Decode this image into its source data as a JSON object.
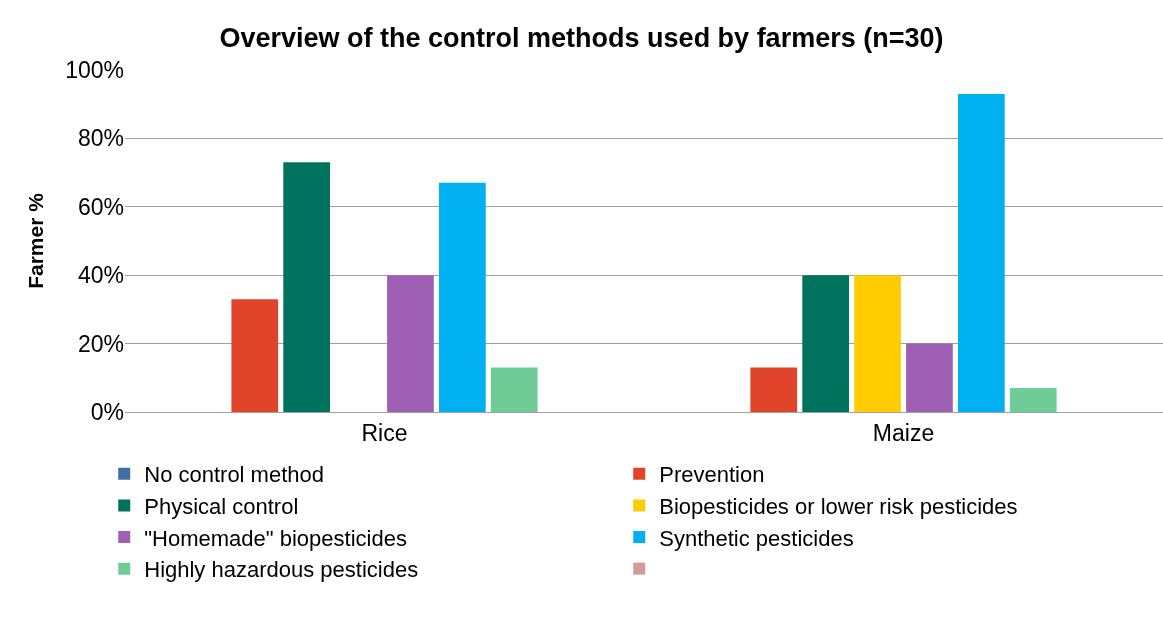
{
  "chart_data": {
    "type": "bar",
    "title": "Overview of the control methods used by farmers (n=30)",
    "ylabel": "Farmer %",
    "categories": [
      "Rice",
      "Maize"
    ],
    "series": [
      {
        "name": "No control method",
        "color": "#3f6fa6",
        "values": [
          0,
          0
        ]
      },
      {
        "name": "Prevention",
        "color": "#e0452b",
        "values": [
          33,
          13
        ]
      },
      {
        "name": "Physical control",
        "color": "#00735f",
        "values": [
          73,
          40
        ]
      },
      {
        "name": "Biopesticides or lower risk pesticides",
        "color": "#ffcc00",
        "values": [
          0,
          40
        ]
      },
      {
        "name": "\"Homemade\" biopesticides",
        "color": "#9e5fb5",
        "values": [
          40,
          20
        ]
      },
      {
        "name": "Synthetic pesticides",
        "color": "#00b0f0",
        "values": [
          67,
          93
        ]
      },
      {
        "name": "Highly hazardous pesticides",
        "color": "#70cc96",
        "values": [
          13,
          7
        ]
      },
      {
        "color": "#d49a98",
        "values": [
          0,
          0
        ]
      }
    ],
    "ylim": [
      0,
      100
    ],
    "yticks": [
      {
        "value": 0,
        "label": "0%"
      },
      {
        "value": 20,
        "label": "20%"
      },
      {
        "value": 40,
        "label": "40%"
      },
      {
        "value": 60,
        "label": "60%"
      },
      {
        "value": 80,
        "label": "80%"
      },
      {
        "value": 100,
        "label": "100%"
      }
    ],
    "grid": "y",
    "legend": "bottom"
  }
}
